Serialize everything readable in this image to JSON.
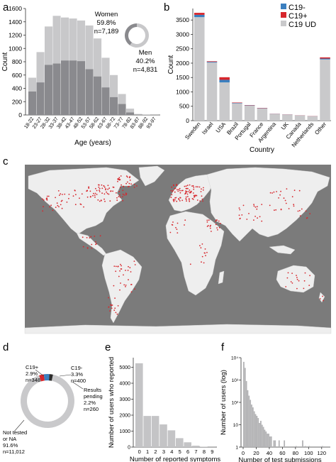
{
  "panels": {
    "a": {
      "letter": "a"
    },
    "b": {
      "letter": "b"
    },
    "c": {
      "letter": "c"
    },
    "d": {
      "letter": "d"
    },
    "e": {
      "letter": "e"
    },
    "f": {
      "letter": "f"
    }
  },
  "colors": {
    "men_bar": "#8a8a8e",
    "women_bar": "#c8c8ca",
    "ud": "#c9c9cb",
    "c19_neg": "#3b7fbf",
    "c19_pos": "#d7262c",
    "ocean": "#7b7b7b",
    "land": "#eeeeee",
    "dots": "#d7262c",
    "bars": "#c4c4c6"
  },
  "chart_data": [
    {
      "panel": "a",
      "type": "bar",
      "stacked": true,
      "categories": [
        "18-22",
        "23-27",
        "28-32",
        "33-37",
        "38-42",
        "43-47",
        "48-52",
        "53-57",
        "58-62",
        "63-67",
        "68-72",
        "73-77",
        "78-82",
        "83-87",
        "88-92",
        "93-97"
      ],
      "series": [
        {
          "name": "Men",
          "values": [
            355,
            490,
            755,
            775,
            820,
            820,
            810,
            690,
            580,
            415,
            270,
            165,
            40,
            5,
            2,
            1
          ]
        },
        {
          "name": "Women",
          "values": [
            205,
            455,
            575,
            715,
            645,
            630,
            610,
            655,
            570,
            445,
            330,
            150,
            55,
            10,
            3,
            1
          ]
        }
      ],
      "xlabel": "Age (years)",
      "ylabel": "Count",
      "ylim": [
        0,
        1600
      ],
      "yticks": [
        "0",
        "200",
        "400",
        "600",
        "800",
        "1000",
        "1200",
        "1400",
        "1600"
      ],
      "donut": [
        {
          "label": "Women",
          "pct": "59.8%",
          "n": "n=7,189",
          "value": 59.8
        },
        {
          "label": "Men",
          "pct": "40.2%",
          "n": "n=4,831",
          "value": 40.2
        }
      ]
    },
    {
      "panel": "b",
      "type": "bar",
      "stacked": true,
      "categories": [
        "Sweden",
        "Israel",
        "USA",
        "Brazil",
        "Portugal",
        "France",
        "Argentina",
        "UK",
        "Canada",
        "Netherlands",
        "Other"
      ],
      "series": [
        {
          "name": "C19 UD",
          "values": [
            3600,
            2020,
            1330,
            600,
            520,
            420,
            230,
            205,
            175,
            150,
            2130
          ]
        },
        {
          "name": "C19-",
          "values": [
            80,
            25,
            90,
            15,
            10,
            10,
            5,
            5,
            5,
            5,
            30
          ]
        },
        {
          "name": "C19+",
          "values": [
            70,
            20,
            90,
            15,
            10,
            10,
            5,
            5,
            5,
            5,
            40
          ]
        }
      ],
      "legend": [
        "C19-",
        "C19+",
        "C19 UD"
      ],
      "xlabel": "Country",
      "ylabel": "Count",
      "ylim": [
        0,
        3900
      ],
      "yticks": [
        "0",
        "500",
        "1000",
        "1500",
        "2000",
        "2500",
        "3000",
        "3500"
      ]
    },
    {
      "panel": "d",
      "type": "pie",
      "slices": [
        {
          "name": "C19+",
          "label_lines": [
            "C19+",
            "2.9%",
            "n=348"
          ],
          "value": 2.9
        },
        {
          "name": "C19-",
          "label_lines": [
            "C19-",
            "3.3%",
            "n=400"
          ],
          "value": 3.3
        },
        {
          "name": "Results pending",
          "label_lines": [
            "Results",
            "pending",
            "2.2%",
            "n=260"
          ],
          "value": 2.2
        },
        {
          "name": "Not tested or NA",
          "label_lines": [
            "Not tested",
            "or NA",
            "91.6%",
            "n=11,012"
          ],
          "value": 91.6
        }
      ]
    },
    {
      "panel": "e",
      "type": "bar",
      "categories": [
        "0",
        "1",
        "2",
        "3",
        "4",
        "5",
        "6",
        "7",
        "8",
        "9"
      ],
      "values": [
        5250,
        1950,
        1950,
        1420,
        1050,
        560,
        300,
        90,
        20,
        5
      ],
      "xlabel": "Number of reported symptoms",
      "ylabel": "Number of users who reported",
      "ylim": [
        0,
        5600
      ],
      "yticks": [
        "0",
        "1000",
        "2000",
        "3000",
        "4000",
        "5000"
      ]
    },
    {
      "panel": "f",
      "type": "bar",
      "scale": "log",
      "x": [
        1,
        3,
        5,
        7,
        9,
        11,
        13,
        15,
        17,
        19,
        21,
        23,
        25,
        27,
        29,
        31,
        33,
        35,
        37,
        39,
        41,
        43,
        47,
        49,
        55,
        63,
        81,
        91,
        95,
        101,
        121
      ],
      "values": [
        6500,
        3500,
        900,
        350,
        200,
        130,
        80,
        60,
        40,
        30,
        25,
        20,
        12,
        15,
        10,
        8,
        6,
        5,
        4,
        4,
        3,
        3,
        2,
        2,
        2,
        2,
        1,
        2,
        1,
        1,
        1
      ],
      "xlabel": "Number of test submissions",
      "ylabel": "Number of users (log)",
      "xlim": [
        0,
        130
      ],
      "xticks": [
        "0",
        "20",
        "40",
        "60",
        "80",
        "100",
        "120"
      ],
      "ylim_log": [
        1,
        10000
      ],
      "yticks": [
        "1",
        "10",
        "10²",
        "10³",
        "10⁴"
      ]
    }
  ]
}
